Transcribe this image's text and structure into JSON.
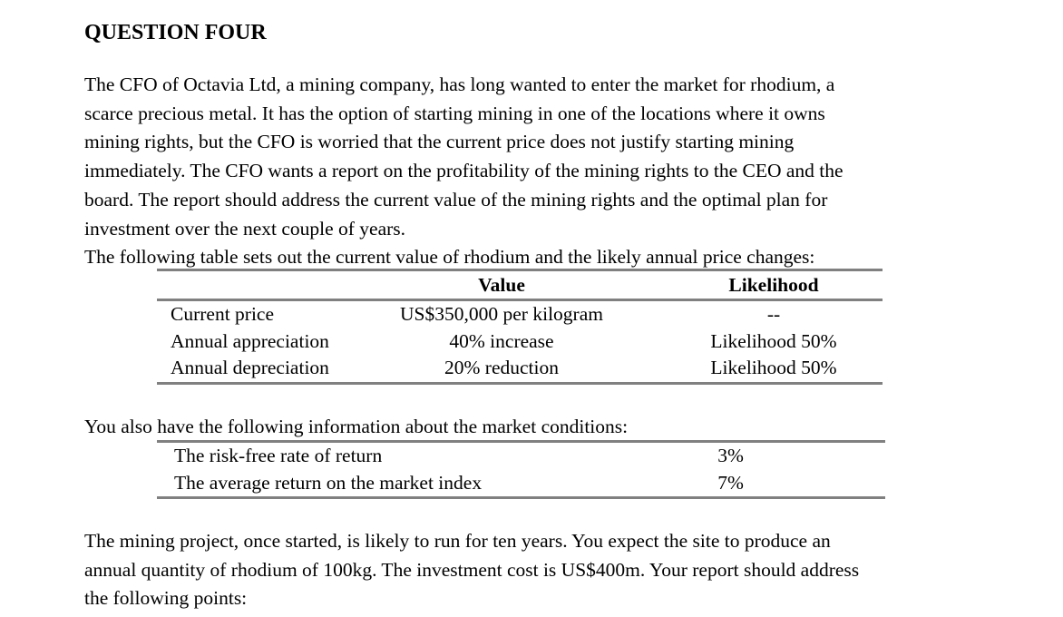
{
  "page": {
    "title": "QUESTION FOUR"
  },
  "intro": {
    "lines": [
      "The CFO of Octavia Ltd, a mining company, has long wanted to enter the market for rhodium, a",
      "scarce precious metal. It has the option of starting mining in one of the locations where it owns",
      "mining rights, but the CFO is worried that the current price does not justify starting mining",
      "immediately. The CFO wants a report on the profitability of the mining rights to the CEO and the",
      "board. The report should address the current value of the mining rights and the optimal plan for",
      "investment over the next couple of years.",
      "The following table sets out the current value of rhodium and the likely annual price changes:"
    ]
  },
  "price_table": {
    "headers": {
      "value": "Value",
      "likelihood": "Likelihood"
    },
    "rows": [
      {
        "label": "Current price",
        "value": "US$350,000 per kilogram",
        "likelihood": "--"
      },
      {
        "label": "Annual appreciation",
        "value": "40% increase",
        "likelihood": "Likelihood 50%"
      },
      {
        "label": "Annual depreciation",
        "value": "20% reduction",
        "likelihood": "Likelihood 50%"
      }
    ]
  },
  "market_intro": "You also have the following information about the market conditions:",
  "market_table": {
    "rows": [
      {
        "label": "The risk-free rate of return",
        "value": "3%"
      },
      {
        "label": "The average return on the market index",
        "value": "7%"
      }
    ]
  },
  "closing": {
    "lines": [
      "The mining project, once started, is likely to run for ten years. You expect the site to produce an",
      "annual quantity of rhodium of 100kg. The investment cost is US$400m. Your report should address",
      "the following points:"
    ]
  },
  "colors": {
    "text": "#000000",
    "table_border": "#808080",
    "background": "#ffffff"
  }
}
